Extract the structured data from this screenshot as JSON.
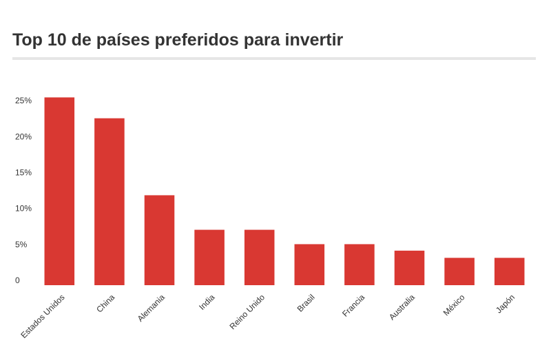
{
  "chart_data": {
    "type": "bar",
    "title": "Top 10 de países preferidos para invertir",
    "categories": [
      "Estados Unidos",
      "China",
      "Alemania",
      "India",
      "Reino Unido",
      "Brasil",
      "Francia",
      "Australia",
      "México",
      "Japón"
    ],
    "values": [
      26.1,
      23.2,
      12.5,
      7.7,
      7.7,
      5.7,
      5.7,
      4.8,
      3.8,
      3.8
    ],
    "color": "#d93832",
    "ylim": [
      0,
      27
    ],
    "yticks": [
      0,
      {
        "value": 5,
        "label": "5%"
      },
      {
        "value": 10,
        "label": "10%"
      },
      {
        "value": 15,
        "label": "15%"
      },
      {
        "value": 20,
        "label": "20%"
      },
      {
        "value": 25,
        "label": "25%"
      }
    ],
    "grid": false
  }
}
